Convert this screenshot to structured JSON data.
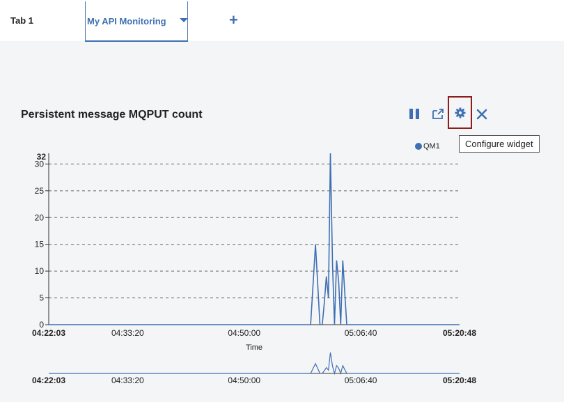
{
  "tabs": [
    {
      "label": "Tab 1",
      "active": false
    },
    {
      "label": "My API Monitoring",
      "active": true
    }
  ],
  "add_tab_label": "+",
  "widget": {
    "title": "Persistent message MQPUT count",
    "tooltip": "Configure widget",
    "toolbar_icons": [
      "pause-icon",
      "popout-icon",
      "gear-icon",
      "close-icon"
    ]
  },
  "chart_data": {
    "type": "line",
    "title": "Persistent message MQPUT count",
    "xlabel": "Time",
    "ylabel": "",
    "y_max_label": "32",
    "ylim": [
      0,
      32
    ],
    "yticks": [
      0,
      5,
      10,
      15,
      20,
      25,
      30
    ],
    "x_range": [
      "04:22:03",
      "05:20:48"
    ],
    "xticks": [
      "04:22:03",
      "04:33:20",
      "04:50:00",
      "05:06:40",
      "05:20:48"
    ],
    "grid": "horizontal-dashed",
    "legend_position": "top-right",
    "series": [
      {
        "name": "QM1",
        "color": "#3e6fb2",
        "points": [
          [
            "04:22:03",
            0
          ],
          [
            "04:59:30",
            0
          ],
          [
            "05:00:12",
            15
          ],
          [
            "05:00:50",
            0
          ],
          [
            "05:01:10",
            0
          ],
          [
            "05:01:27",
            4
          ],
          [
            "05:01:45",
            9
          ],
          [
            "05:02:03",
            5
          ],
          [
            "05:02:20",
            32
          ],
          [
            "05:02:38",
            11
          ],
          [
            "05:02:55",
            0
          ],
          [
            "05:03:13",
            12
          ],
          [
            "05:03:31",
            8
          ],
          [
            "05:03:48",
            0
          ],
          [
            "05:04:06",
            12
          ],
          [
            "05:04:40",
            0
          ],
          [
            "05:20:48",
            0
          ]
        ]
      }
    ],
    "overview_xticks": [
      "04:22:03",
      "04:33:20",
      "04:50:00",
      "05:06:40",
      "05:20:48"
    ]
  }
}
